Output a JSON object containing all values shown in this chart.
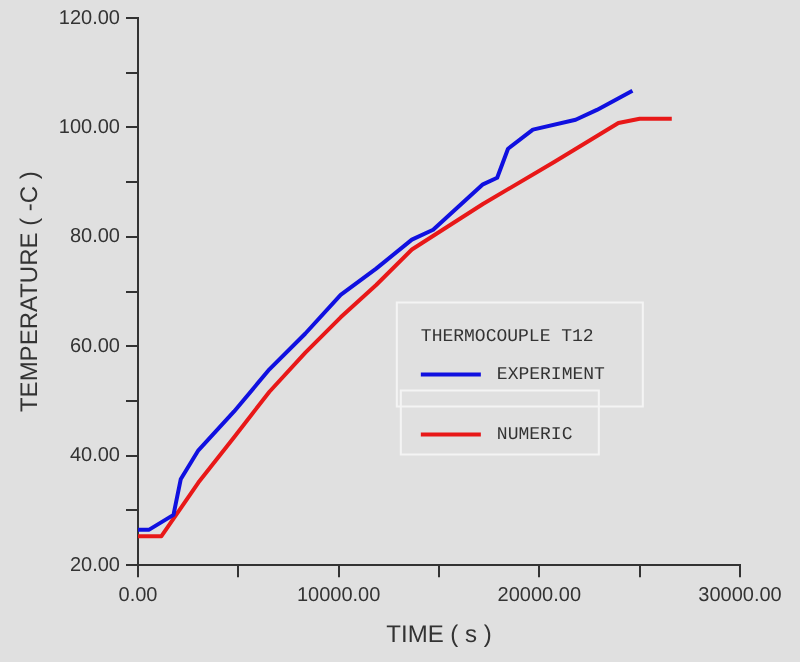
{
  "chart_data": {
    "type": "line",
    "xlabel": "TIME ( s )",
    "ylabel": "TEMPERATURE ( -C )",
    "legend_title": "THERMOCOUPLE T12",
    "legend": "center",
    "grid": false,
    "marker": "none",
    "line_style": "solid",
    "xlim": [
      0,
      30000
    ],
    "ylim": [
      20,
      120
    ],
    "xticks": [
      {
        "value": 0,
        "label": "0.00"
      },
      {
        "value": 5000,
        "label": null
      },
      {
        "value": 10000,
        "label": "10000.00"
      },
      {
        "value": 15000,
        "label": null
      },
      {
        "value": 20000,
        "label": "20000.00"
      },
      {
        "value": 25000,
        "label": null
      },
      {
        "value": 30000,
        "label": "30000.00"
      }
    ],
    "yticks": [
      {
        "value": 20,
        "label": "20.00"
      },
      {
        "value": 30,
        "label": null
      },
      {
        "value": 40,
        "label": "40.00"
      },
      {
        "value": 50,
        "label": null
      },
      {
        "value": 60,
        "label": "60.00"
      },
      {
        "value": 70,
        "label": null
      },
      {
        "value": 80,
        "label": "80.00"
      },
      {
        "value": 90,
        "label": null
      },
      {
        "value": 100,
        "label": "100.00"
      },
      {
        "value": 110,
        "label": null
      },
      {
        "value": 120,
        "label": "120.00"
      }
    ],
    "series": [
      {
        "name": "EXPERIMENT",
        "color": "#1010e0",
        "x": [
          0,
          560,
          1770,
          2130,
          3010,
          4790,
          6550,
          8330,
          10100,
          11870,
          13650,
          14710,
          17190,
          17900,
          18440,
          19680,
          21810,
          22870,
          24640
        ],
        "values": [
          26.5,
          26.5,
          29.2,
          35.7,
          41.0,
          48.1,
          55.8,
          62.3,
          69.4,
          74.2,
          79.5,
          81.3,
          89.6,
          90.8,
          96.1,
          99.6,
          101.4,
          103.2,
          106.7
        ]
      },
      {
        "name": "NUMERIC",
        "color": "#e81818",
        "x": [
          0,
          1170,
          3010,
          4790,
          6550,
          8330,
          10100,
          11870,
          13650,
          17190,
          20740,
          23940,
          25000,
          26600
        ],
        "values": [
          25.3,
          25.3,
          35.1,
          43.4,
          51.7,
          58.8,
          65.3,
          71.2,
          77.7,
          86.0,
          93.7,
          100.8,
          101.6,
          101.6
        ]
      }
    ]
  }
}
